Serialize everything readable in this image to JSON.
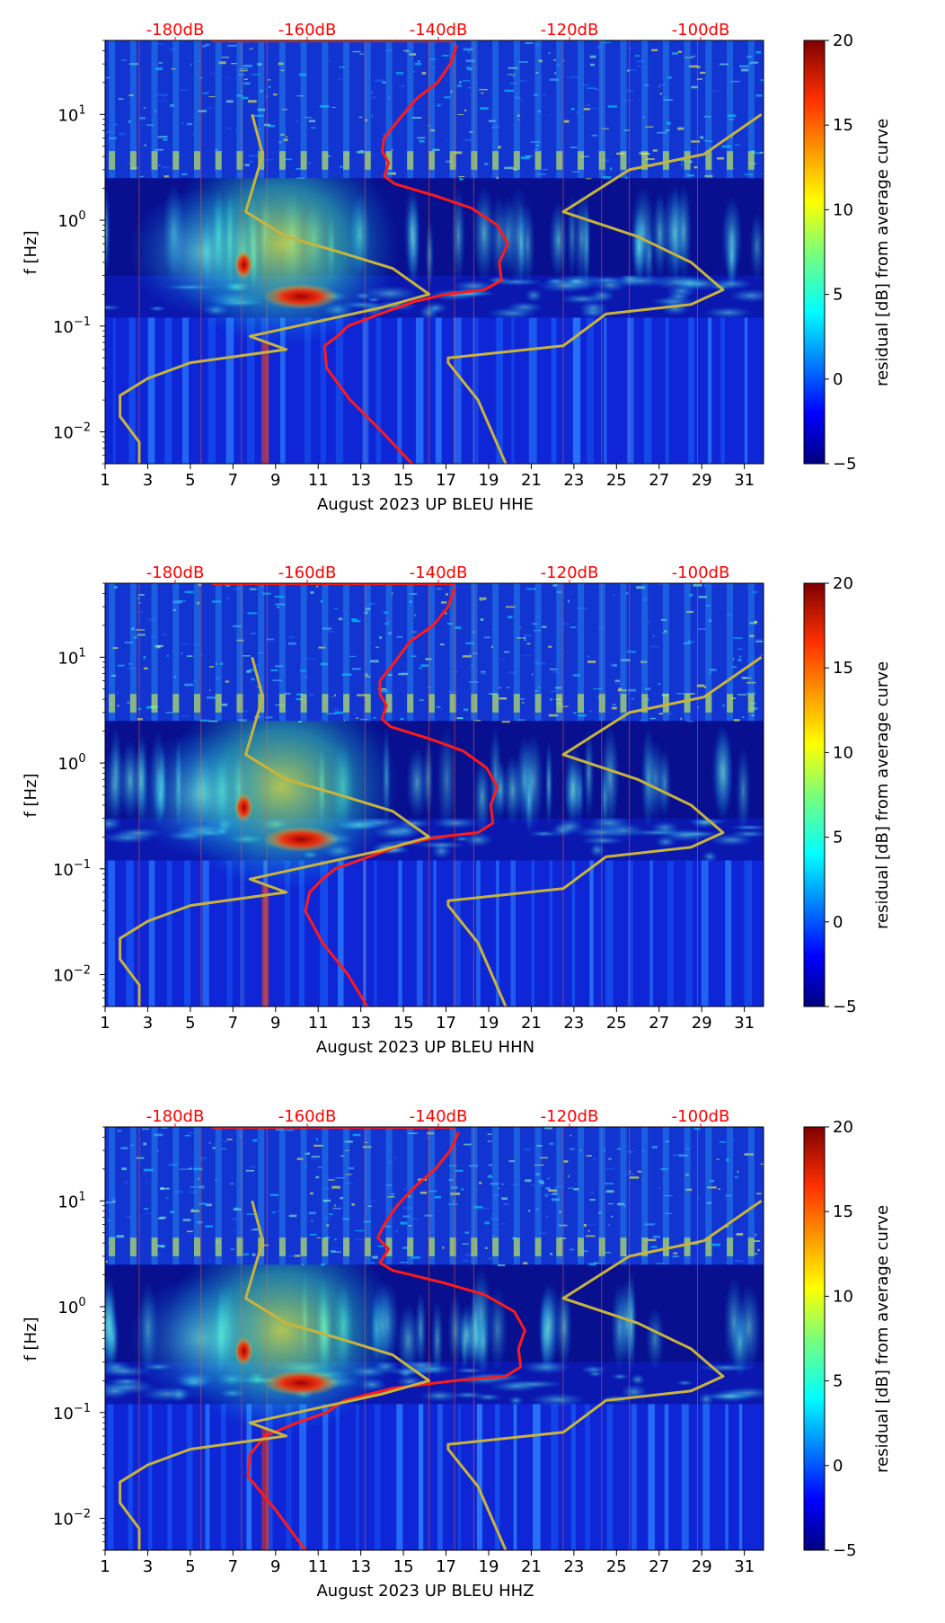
{
  "figure": {
    "background": "#ffffff"
  },
  "chart_data": [
    {
      "type": "heatmap",
      "title": "",
      "xlabel": "August 2023 UP BLEU  HHE",
      "ylabel": "f [Hz]",
      "x_ticks": [
        "1",
        "3",
        "5",
        "7",
        "9",
        "11",
        "13",
        "15",
        "17",
        "19",
        "21",
        "23",
        "25",
        "27",
        "29",
        "31"
      ],
      "x_range": [
        1,
        31.9
      ],
      "y_scale": "log",
      "y_range": [
        0.005,
        50
      ],
      "y_ticks": [
        {
          "value": 0.01,
          "base": "10",
          "exp": "−2"
        },
        {
          "value": 0.1,
          "base": "10",
          "exp": "−1"
        },
        {
          "value": 1,
          "base": "10",
          "exp": "0"
        },
        {
          "value": 10,
          "base": "10",
          "exp": "1"
        }
      ],
      "top_axis_ticks": [
        "-180dB",
        "-160dB",
        "-140dB",
        "-120dB",
        "-100dB"
      ],
      "top_axis_color": "#ff0000",
      "colorbar": {
        "label": "residual [dB] from average curve",
        "range": [
          -5,
          20
        ],
        "ticks": [
          "−5",
          "0",
          "5",
          "10",
          "15",
          "20"
        ],
        "colormap": "jet"
      },
      "series": [
        {
          "color": "#ff1a1a",
          "points": [
            [
              17.5,
              45
            ],
            [
              17.2,
              30
            ],
            [
              16.6,
              20
            ],
            [
              15.6,
              14
            ],
            [
              14.8,
              9
            ],
            [
              14.1,
              6
            ],
            [
              14.0,
              4.5
            ],
            [
              14.3,
              3.5
            ],
            [
              14.1,
              2.6
            ],
            [
              14.6,
              2.2
            ],
            [
              16.5,
              1.7
            ],
            [
              18.2,
              1.3
            ],
            [
              19.4,
              0.9
            ],
            [
              19.9,
              0.6
            ],
            [
              19.5,
              0.4
            ],
            [
              19.6,
              0.27
            ],
            [
              18.8,
              0.22
            ],
            [
              17.0,
              0.2
            ],
            [
              15.5,
              0.17
            ],
            [
              13.9,
              0.13
            ],
            [
              12.4,
              0.1
            ],
            [
              11.9,
              0.08
            ],
            [
              11.3,
              0.065
            ],
            [
              11.4,
              0.04
            ],
            [
              12.5,
              0.02
            ],
            [
              14.0,
              0.01
            ],
            [
              15.4,
              0.005
            ]
          ]
        },
        {
          "color": "#c8b43c",
          "points": [
            [
              7.9,
              10
            ],
            [
              8.4,
              4.2
            ],
            [
              7.6,
              1.2
            ],
            [
              9.5,
              0.7
            ],
            [
              12.0,
              0.5
            ],
            [
              14.5,
              0.35
            ],
            [
              16.2,
              0.2
            ],
            [
              14.0,
              0.15
            ],
            [
              10.0,
              0.1
            ],
            [
              7.8,
              0.08
            ],
            [
              9.5,
              0.06
            ],
            [
              5.0,
              0.045
            ],
            [
              3.0,
              0.032
            ],
            [
              1.7,
              0.022
            ],
            [
              1.7,
              0.014
            ],
            [
              2.6,
              0.008
            ],
            [
              2.6,
              0.005
            ]
          ]
        },
        {
          "color": "#c8b43c",
          "points": [
            [
              31.8,
              10
            ],
            [
              29.1,
              4.2
            ],
            [
              25.6,
              3.0
            ],
            [
              22.5,
              1.2
            ],
            [
              26.0,
              0.7
            ],
            [
              28.5,
              0.4
            ],
            [
              30.0,
              0.22
            ],
            [
              28.5,
              0.16
            ],
            [
              24.5,
              0.13
            ],
            [
              22.5,
              0.065
            ],
            [
              17.1,
              0.05
            ],
            [
              17.1,
              0.045
            ],
            [
              18.5,
              0.02
            ],
            [
              19.8,
              0.005
            ]
          ]
        }
      ]
    },
    {
      "type": "heatmap",
      "title": "",
      "xlabel": "August 2023 UP BLEU  HHN",
      "ylabel": "f [Hz]",
      "x_ticks": [
        "1",
        "3",
        "5",
        "7",
        "9",
        "11",
        "13",
        "15",
        "17",
        "19",
        "21",
        "23",
        "25",
        "27",
        "29",
        "31"
      ],
      "x_range": [
        1,
        31.9
      ],
      "y_scale": "log",
      "y_range": [
        0.005,
        50
      ],
      "y_ticks": [
        {
          "value": 0.01,
          "base": "10",
          "exp": "−2"
        },
        {
          "value": 0.1,
          "base": "10",
          "exp": "−1"
        },
        {
          "value": 1,
          "base": "10",
          "exp": "0"
        },
        {
          "value": 10,
          "base": "10",
          "exp": "1"
        }
      ],
      "top_axis_ticks": [
        "-180dB",
        "-160dB",
        "-140dB",
        "-120dB",
        "-100dB"
      ],
      "top_axis_color": "#ff0000",
      "colorbar": {
        "label": "residual [dB] from average curve",
        "range": [
          -5,
          20
        ],
        "ticks": [
          "−5",
          "0",
          "5",
          "10",
          "15",
          "20"
        ],
        "colormap": "jet"
      },
      "series": [
        {
          "color": "#ff1a1a",
          "points": [
            [
              17.4,
              45
            ],
            [
              17.1,
              30
            ],
            [
              16.4,
              20
            ],
            [
              15.3,
              14
            ],
            [
              14.6,
              9
            ],
            [
              13.9,
              6
            ],
            [
              13.9,
              4.5
            ],
            [
              14.2,
              3.5
            ],
            [
              14.0,
              2.6
            ],
            [
              14.4,
              2.2
            ],
            [
              16.2,
              1.7
            ],
            [
              17.8,
              1.3
            ],
            [
              18.9,
              0.9
            ],
            [
              19.4,
              0.6
            ],
            [
              19.1,
              0.4
            ],
            [
              19.2,
              0.27
            ],
            [
              18.5,
              0.22
            ],
            [
              16.6,
              0.2
            ],
            [
              15.0,
              0.17
            ],
            [
              13.4,
              0.13
            ],
            [
              11.8,
              0.1
            ],
            [
              11.2,
              0.08
            ],
            [
              10.6,
              0.06
            ],
            [
              10.4,
              0.04
            ],
            [
              11.2,
              0.02
            ],
            [
              12.4,
              0.01
            ],
            [
              13.3,
              0.005
            ]
          ]
        },
        {
          "color": "#c8b43c",
          "points": [
            [
              7.9,
              10
            ],
            [
              8.4,
              4.2
            ],
            [
              7.6,
              1.2
            ],
            [
              9.5,
              0.7
            ],
            [
              12.0,
              0.5
            ],
            [
              14.5,
              0.35
            ],
            [
              16.2,
              0.2
            ],
            [
              14.0,
              0.15
            ],
            [
              10.0,
              0.1
            ],
            [
              7.8,
              0.08
            ],
            [
              9.5,
              0.06
            ],
            [
              5.0,
              0.045
            ],
            [
              3.0,
              0.032
            ],
            [
              1.7,
              0.022
            ],
            [
              1.7,
              0.014
            ],
            [
              2.6,
              0.008
            ],
            [
              2.6,
              0.005
            ]
          ]
        },
        {
          "color": "#c8b43c",
          "points": [
            [
              31.8,
              10
            ],
            [
              29.1,
              4.2
            ],
            [
              25.6,
              3.0
            ],
            [
              22.5,
              1.2
            ],
            [
              26.0,
              0.7
            ],
            [
              28.5,
              0.4
            ],
            [
              30.0,
              0.22
            ],
            [
              28.5,
              0.16
            ],
            [
              24.5,
              0.13
            ],
            [
              22.5,
              0.065
            ],
            [
              17.1,
              0.05
            ],
            [
              17.1,
              0.045
            ],
            [
              18.5,
              0.02
            ],
            [
              19.8,
              0.005
            ]
          ]
        }
      ]
    },
    {
      "type": "heatmap",
      "title": "",
      "xlabel": "August 2023 UP BLEU  HHZ",
      "ylabel": "f [Hz]",
      "x_ticks": [
        "1",
        "3",
        "5",
        "7",
        "9",
        "11",
        "13",
        "15",
        "17",
        "19",
        "21",
        "23",
        "25",
        "27",
        "29",
        "31"
      ],
      "x_range": [
        1,
        31.9
      ],
      "y_scale": "log",
      "y_range": [
        0.005,
        50
      ],
      "y_ticks": [
        {
          "value": 0.01,
          "base": "10",
          "exp": "−2"
        },
        {
          "value": 0.1,
          "base": "10",
          "exp": "−1"
        },
        {
          "value": 1,
          "base": "10",
          "exp": "0"
        },
        {
          "value": 10,
          "base": "10",
          "exp": "1"
        }
      ],
      "top_axis_ticks": [
        "-180dB",
        "-160dB",
        "-140dB",
        "-120dB",
        "-100dB"
      ],
      "top_axis_color": "#ff0000",
      "colorbar": {
        "label": "residual [dB] from average curve",
        "range": [
          -5,
          20
        ],
        "ticks": [
          "−5",
          "0",
          "5",
          "10",
          "15",
          "20"
        ],
        "colormap": "jet"
      },
      "series": [
        {
          "color": "#ff1a1a",
          "points": [
            [
              17.6,
              45
            ],
            [
              17.2,
              30
            ],
            [
              16.5,
              20
            ],
            [
              15.6,
              14
            ],
            [
              14.7,
              9
            ],
            [
              14.1,
              6
            ],
            [
              13.8,
              4.5
            ],
            [
              14.3,
              3.5
            ],
            [
              13.9,
              2.6
            ],
            [
              14.5,
              2.2
            ],
            [
              16.8,
              1.7
            ],
            [
              18.8,
              1.3
            ],
            [
              20.2,
              0.9
            ],
            [
              20.7,
              0.6
            ],
            [
              20.4,
              0.4
            ],
            [
              20.5,
              0.27
            ],
            [
              19.8,
              0.22
            ],
            [
              17.4,
              0.2
            ],
            [
              14.5,
              0.17
            ],
            [
              12.2,
              0.13
            ],
            [
              11.4,
              0.1
            ],
            [
              10.0,
              0.08
            ],
            [
              8.5,
              0.06
            ],
            [
              7.8,
              0.04
            ],
            [
              7.7,
              0.025
            ],
            [
              9.0,
              0.012
            ],
            [
              10.4,
              0.005
            ]
          ]
        },
        {
          "color": "#c8b43c",
          "points": [
            [
              7.9,
              10
            ],
            [
              8.4,
              4.2
            ],
            [
              7.6,
              1.2
            ],
            [
              9.5,
              0.7
            ],
            [
              12.0,
              0.5
            ],
            [
              14.5,
              0.35
            ],
            [
              16.2,
              0.2
            ],
            [
              14.0,
              0.15
            ],
            [
              10.0,
              0.1
            ],
            [
              7.8,
              0.08
            ],
            [
              9.5,
              0.06
            ],
            [
              5.0,
              0.045
            ],
            [
              3.0,
              0.032
            ],
            [
              1.7,
              0.022
            ],
            [
              1.7,
              0.014
            ],
            [
              2.6,
              0.008
            ],
            [
              2.6,
              0.005
            ]
          ]
        },
        {
          "color": "#c8b43c",
          "points": [
            [
              31.8,
              10
            ],
            [
              29.1,
              4.2
            ],
            [
              25.6,
              3.0
            ],
            [
              22.5,
              1.2
            ],
            [
              26.0,
              0.7
            ],
            [
              28.5,
              0.4
            ],
            [
              30.0,
              0.22
            ],
            [
              28.5,
              0.16
            ],
            [
              24.5,
              0.13
            ],
            [
              22.5,
              0.065
            ],
            [
              17.1,
              0.05
            ],
            [
              17.1,
              0.045
            ],
            [
              18.5,
              0.02
            ],
            [
              19.8,
              0.005
            ]
          ]
        }
      ]
    }
  ]
}
